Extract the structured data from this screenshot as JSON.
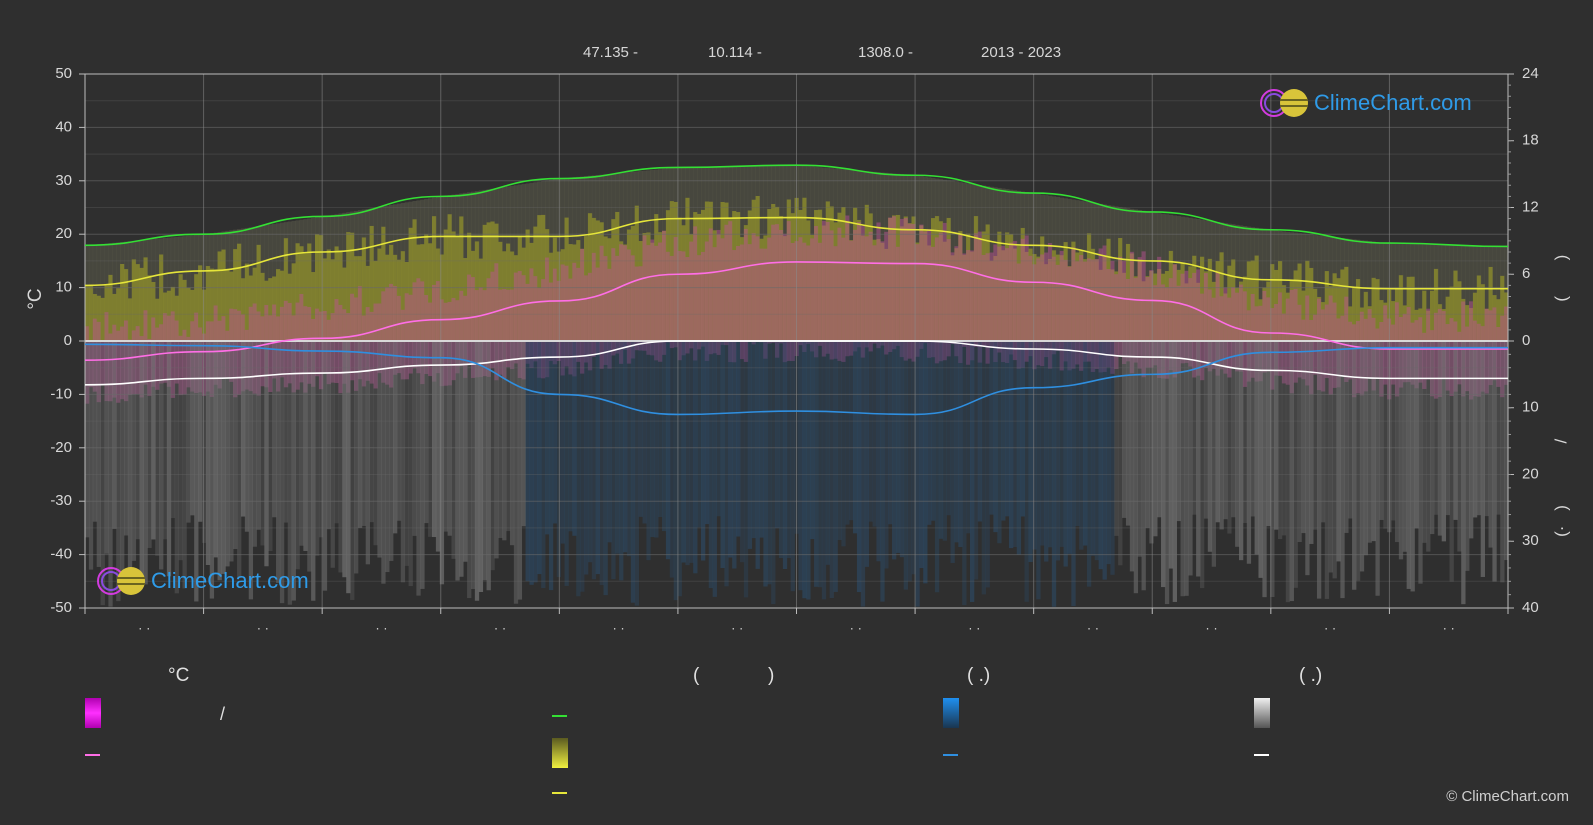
{
  "header": {
    "lat": "47.135 -",
    "lon": "10.114 -",
    "elev": "1308.0 -",
    "years": "2013 - 2023"
  },
  "logo_text": "ClimeChart.com",
  "copyright": "© ClimeChart.com",
  "legend": {
    "temp_heading": "°C",
    "sun_heading_left": "(",
    "sun_heading_right": ")",
    "rain_heading": "(   .)",
    "snow_heading": "(   .)",
    "temp_range_sep": "/"
  },
  "colors": {
    "background": "#2f2f2f",
    "daylight": "#34e034",
    "sunshine": "#e6e63a",
    "temp_max": "#ff6ee6",
    "temp_min_white": "#ffffff",
    "rain": "#2f8fe0",
    "grid": "#5a5a5a"
  },
  "chart_data": {
    "type": "line",
    "months": 12,
    "left_axis": {
      "label": "°C",
      "ticks": [
        50,
        40,
        30,
        20,
        10,
        0,
        -10,
        -20,
        -30,
        -40,
        -50
      ],
      "range": [
        -50,
        50
      ]
    },
    "right_axis_top": {
      "ticks": [
        24,
        18,
        12,
        6,
        0
      ],
      "range": [
        0,
        24
      ]
    },
    "right_axis_bottom": {
      "ticks": [
        0,
        10,
        20,
        30,
        40
      ],
      "range": [
        0,
        40
      ]
    },
    "right_axis_glyphs": [
      ")",
      "(",
      "/",
      ")",
      "(·"
    ],
    "month_tick_labels": [
      "· ·",
      "· ·",
      "· ·",
      "· ·",
      "· ·",
      "· ·",
      "· ·",
      "· ·",
      "· ·",
      "· ·",
      "· ·",
      "· ·"
    ],
    "series": [
      {
        "key": "daylight_hours",
        "axis": "hours",
        "values": [
          8.6,
          9.6,
          11.2,
          13.0,
          14.6,
          15.6,
          15.8,
          14.9,
          13.3,
          11.6,
          10.0,
          8.8,
          8.5
        ]
      },
      {
        "key": "sunshine_hours",
        "axis": "hours",
        "values": [
          5.0,
          6.3,
          8.0,
          9.4,
          9.4,
          11.0,
          11.1,
          10.0,
          8.6,
          7.2,
          5.5,
          4.7,
          4.7
        ]
      },
      {
        "key": "temp_max_avg",
        "axis": "celsius",
        "values": [
          -3.6,
          -2.0,
          0.5,
          4.0,
          7.5,
          12.5,
          14.8,
          14.5,
          11.0,
          7.6,
          1.5,
          -1.5,
          -1.5
        ]
      },
      {
        "key": "temp_min_avg",
        "axis": "celsius",
        "values": [
          -8.2,
          -7.0,
          -6.0,
          -4.5,
          -3.0,
          0.0,
          0.0,
          0.0,
          -1.5,
          -3.0,
          -5.5,
          -7.0,
          -7.0
        ]
      },
      {
        "key": "rain_mm_day",
        "axis": "mm",
        "values": [
          0.5,
          0.7,
          1.5,
          2.5,
          8.0,
          11.0,
          10.5,
          11.0,
          7.0,
          5.0,
          1.7,
          1.0,
          1.0
        ]
      }
    ]
  }
}
